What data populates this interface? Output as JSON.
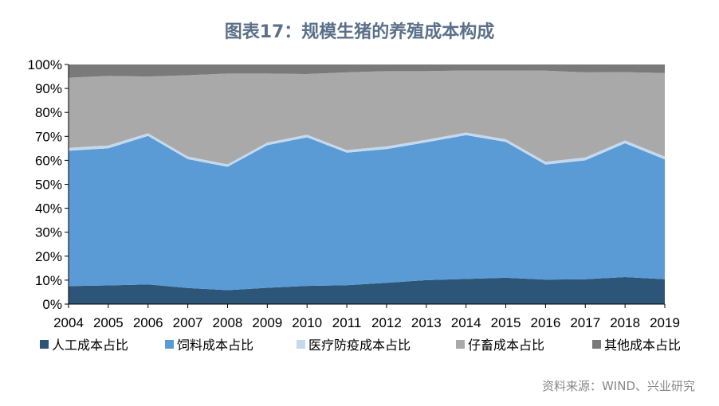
{
  "chart_data": {
    "type": "area",
    "stacked": true,
    "title": "图表17：规模生猪的养殖成本构成",
    "xlabel": "",
    "ylabel": "",
    "ylim": [
      0,
      100
    ],
    "y_ticks": [
      "0%",
      "10%",
      "20%",
      "30%",
      "40%",
      "50%",
      "60%",
      "70%",
      "80%",
      "90%",
      "100%"
    ],
    "x": [
      "2004",
      "2005",
      "2006",
      "2007",
      "2008",
      "2009",
      "2010",
      "2011",
      "2012",
      "2013",
      "2014",
      "2015",
      "2016",
      "2017",
      "2018",
      "2019"
    ],
    "legend_position": "bottom",
    "grid": false,
    "series": [
      {
        "name": "人工成本占比",
        "color": "#2d5578",
        "values": [
          7.5,
          7.8,
          8.2,
          6.7,
          5.8,
          6.8,
          7.6,
          7.9,
          8.9,
          10.0,
          10.5,
          11.0,
          10.2,
          10.4,
          11.3,
          10.4
        ]
      },
      {
        "name": "饲料成本占比",
        "color": "#5b9bd5",
        "values": [
          56.5,
          57.2,
          62.0,
          53.8,
          51.5,
          59.5,
          62.0,
          55.3,
          55.8,
          57.5,
          60.0,
          56.7,
          48.0,
          49.6,
          55.8,
          50.0
        ]
      },
      {
        "name": "医疗防疫成本占比",
        "color": "#c5d9ee",
        "values": [
          1.2,
          1.2,
          1.1,
          1.1,
          1.0,
          1.1,
          1.1,
          1.1,
          1.1,
          1.1,
          1.1,
          1.1,
          1.2,
          1.2,
          1.2,
          1.2
        ]
      },
      {
        "name": "仔畜成本占比",
        "color": "#a9a9a9",
        "values": [
          29.3,
          29.0,
          23.7,
          33.9,
          37.9,
          28.8,
          25.3,
          32.4,
          31.4,
          28.6,
          25.9,
          28.7,
          38.0,
          35.5,
          28.5,
          34.8
        ]
      },
      {
        "name": "其他成本占比",
        "color": "#7a7a7a",
        "values": [
          5.5,
          4.8,
          5.0,
          4.5,
          3.8,
          3.8,
          4.0,
          3.3,
          2.8,
          2.8,
          2.5,
          2.5,
          2.6,
          3.3,
          3.2,
          3.6
        ]
      }
    ]
  },
  "source": "资料来源：WIND、兴业研究"
}
